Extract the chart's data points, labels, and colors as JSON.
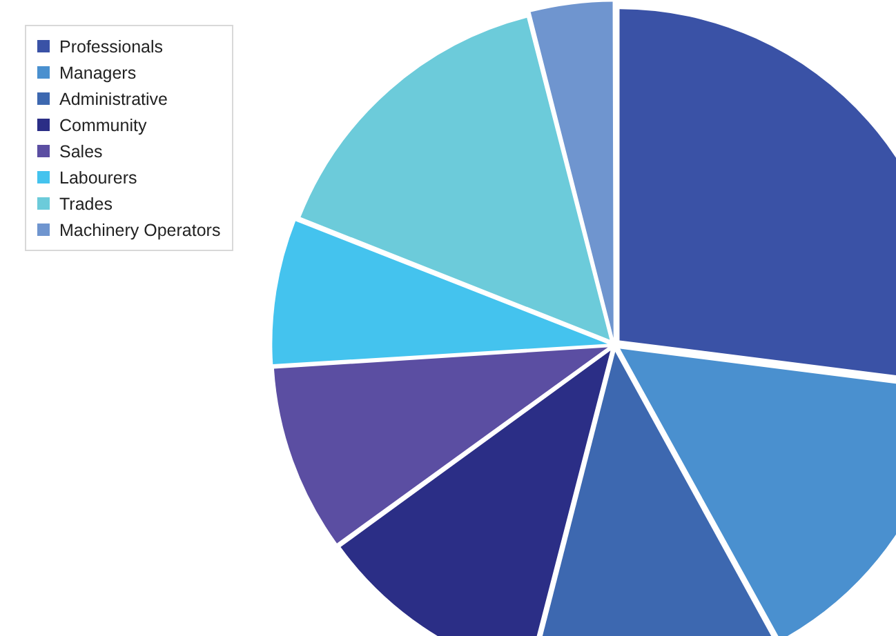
{
  "chart_data": {
    "type": "pie",
    "categories": [
      "Professionals",
      "Managers",
      "Administrative",
      "Community",
      "Sales",
      "Labourers",
      "Trades",
      "Machinery Operators"
    ],
    "values": [
      27,
      15,
      12,
      11,
      9,
      7,
      15,
      4
    ],
    "colors": [
      "#3a52a6",
      "#4a90cf",
      "#3d68b0",
      "#2b2e86",
      "#5b4ea2",
      "#44c3ee",
      "#6ccbda",
      "#6f95cf"
    ],
    "legend": "top left"
  }
}
